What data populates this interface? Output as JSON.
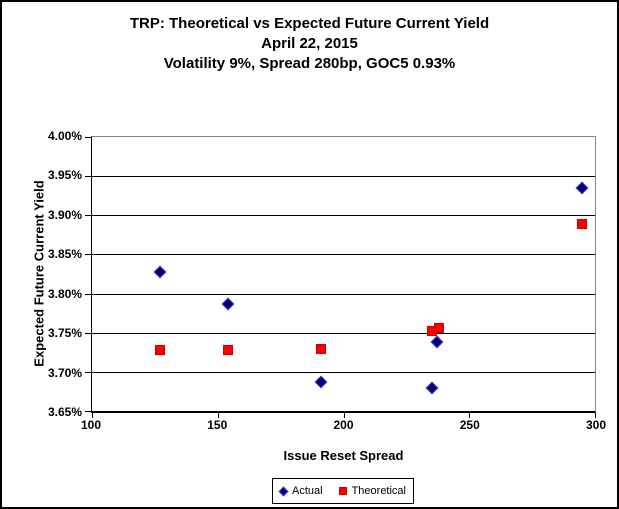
{
  "chart_data": {
    "type": "scatter",
    "title": "TRP: Theoretical vs Expected Future Current Yield",
    "subtitle_date": "April 22, 2015",
    "subtitle_params": "Volatility 9%, Spread 280bp, GOC5 0.93%",
    "xlabel": "Issue Reset Spread",
    "ylabel": "Expected Future Current Yield",
    "xlim": [
      100,
      300
    ],
    "ylim": [
      3.65,
      4.0
    ],
    "grid": "horizontal",
    "legend_position": "bottom",
    "xticks": [
      {
        "value": 100,
        "label": "100"
      },
      {
        "value": 150,
        "label": "150"
      },
      {
        "value": 200,
        "label": "200"
      },
      {
        "value": 250,
        "label": "250"
      },
      {
        "value": 300,
        "label": "300"
      }
    ],
    "yticks": [
      {
        "value": 4.0,
        "label": "4.00%"
      },
      {
        "value": 3.95,
        "label": "3.95%"
      },
      {
        "value": 3.9,
        "label": "3.90%"
      },
      {
        "value": 3.85,
        "label": "3.85%"
      },
      {
        "value": 3.8,
        "label": "3.80%"
      },
      {
        "value": 3.75,
        "label": "3.75%"
      },
      {
        "value": 3.7,
        "label": "3.70%"
      },
      {
        "value": 3.65,
        "label": "3.65%"
      }
    ],
    "series": [
      {
        "name": "Actual",
        "marker": "diamond",
        "color": "#000080",
        "border_color": "#3939ac",
        "points": [
          [
            127,
            3.828
          ],
          [
            154,
            3.787
          ],
          [
            191,
            3.687
          ],
          [
            235,
            3.68
          ],
          [
            237,
            3.738
          ],
          [
            295,
            3.935
          ]
        ]
      },
      {
        "name": "Theoretical",
        "marker": "square",
        "color": "#ff0000",
        "border_color": "#cc0000",
        "points": [
          [
            127,
            3.728
          ],
          [
            154,
            3.728
          ],
          [
            191,
            3.729
          ],
          [
            235,
            3.752
          ],
          [
            238,
            3.756
          ],
          [
            295,
            3.889
          ]
        ]
      }
    ]
  }
}
